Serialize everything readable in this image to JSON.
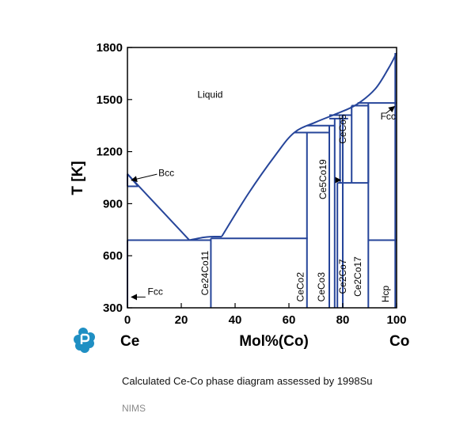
{
  "chart_data": {
    "type": "phase-diagram",
    "xlabel": "Mol%(Co)",
    "ylabel": "T [K]",
    "xlim": [
      0,
      100
    ],
    "ylim": [
      300,
      1800
    ],
    "xticks": [
      0,
      20,
      40,
      60,
      80,
      100
    ],
    "yticks": [
      300,
      600,
      900,
      1200,
      1500,
      1800
    ],
    "element_left": "Ce",
    "element_right": "Co",
    "colors": {
      "lines": "#26459a",
      "frame": "#000000",
      "logo": "#1f8fc3"
    },
    "curves": [
      {
        "name": "liquidus-ce-left",
        "points": [
          [
            0,
            1071
          ],
          [
            23,
            690
          ]
        ]
      },
      {
        "name": "liquidus-main",
        "points": [
          [
            35,
            710
          ],
          [
            45,
            960
          ],
          [
            55,
            1180
          ],
          [
            62,
            1310
          ],
          [
            70,
            1370
          ],
          [
            78,
            1420
          ],
          [
            85,
            1470
          ],
          [
            92,
            1560
          ],
          [
            97,
            1680
          ],
          [
            100,
            1768
          ]
        ]
      },
      {
        "name": "bcc-upper-boundary",
        "points": [
          [
            0,
            1071
          ],
          [
            4,
            1000
          ]
        ]
      },
      {
        "name": "bcc-left-boundary",
        "points": [
          [
            0,
            1000
          ],
          [
            0,
            1071
          ]
        ]
      },
      {
        "name": "bcc-ce-bottom",
        "points": [
          [
            0,
            1000
          ],
          [
            4,
            1000
          ]
        ]
      },
      {
        "name": "ce24co11-liquidus",
        "points": [
          [
            23,
            690
          ],
          [
            28,
            705
          ],
          [
            31,
            710
          ],
          [
            35,
            710
          ]
        ]
      },
      {
        "name": "eutectic-ce-ce24co11",
        "points": [
          [
            0,
            690
          ],
          [
            31,
            690
          ]
        ]
      },
      {
        "name": "peritectic-ce24co11",
        "points": [
          [
            31,
            700
          ],
          [
            67,
            700
          ]
        ]
      },
      {
        "name": "ce24co11-line",
        "points": [
          [
            31,
            300
          ],
          [
            31,
            700
          ]
        ]
      },
      {
        "name": "ceco2-line",
        "points": [
          [
            66.7,
            300
          ],
          [
            66.7,
            1310
          ]
        ]
      },
      {
        "name": "ceco2-top",
        "points": [
          [
            62,
            1310
          ],
          [
            75,
            1310
          ]
        ]
      },
      {
        "name": "ceco3-line",
        "points": [
          [
            75,
            300
          ],
          [
            75,
            1350
          ]
        ]
      },
      {
        "name": "ceco3-top",
        "points": [
          [
            66.7,
            1350
          ],
          [
            77,
            1350
          ]
        ]
      },
      {
        "name": "ce5co19-left",
        "points": [
          [
            77,
            300
          ],
          [
            77,
            1390
          ]
        ]
      },
      {
        "name": "ce5co19-right",
        "points": [
          [
            79,
            1020
          ],
          [
            79,
            1390
          ]
        ]
      },
      {
        "name": "ce5co19-top",
        "points": [
          [
            75,
            1390
          ],
          [
            82,
            1390
          ]
        ]
      },
      {
        "name": "ce2co7-line",
        "points": [
          [
            78,
            300
          ],
          [
            78,
            1020
          ]
        ]
      },
      {
        "name": "ce2co7-top",
        "points": [
          [
            78,
            1020
          ],
          [
            83.3,
            1020
          ]
        ]
      },
      {
        "name": "ce2co17-line",
        "points": [
          [
            80,
            300
          ],
          [
            80,
            1410
          ]
        ]
      },
      {
        "name": "ce2co17-top",
        "points": [
          [
            75,
            1410
          ],
          [
            83.3,
            1410
          ]
        ]
      },
      {
        "name": "ceco5-left",
        "points": [
          [
            83.3,
            1020
          ],
          [
            83.3,
            1465
          ]
        ]
      },
      {
        "name": "ceco5-top",
        "points": [
          [
            83.3,
            1465
          ],
          [
            89.5,
            1465
          ]
        ]
      },
      {
        "name": "ceco5-right",
        "points": [
          [
            89.5,
            1020
          ],
          [
            89.5,
            1465
          ]
        ]
      },
      {
        "name": "ceco5-bottom",
        "points": [
          [
            83.3,
            1020
          ],
          [
            89.5,
            1020
          ]
        ]
      },
      {
        "name": "ce2co17-right",
        "points": [
          [
            89.5,
            300
          ],
          [
            89.5,
            1480
          ]
        ]
      },
      {
        "name": "fcc-co-top",
        "points": [
          [
            85.5,
            1480
          ],
          [
            100,
            1480
          ]
        ]
      },
      {
        "name": "hcp-co-top",
        "points": [
          [
            89.5,
            690
          ],
          [
            100,
            690
          ]
        ]
      },
      {
        "name": "co-edge-line",
        "points": [
          [
            99.5,
            300
          ],
          [
            99.5,
            1768
          ]
        ]
      },
      {
        "name": "fcc-ce-line",
        "points": [
          [
            0,
            300
          ],
          [
            0,
            690
          ]
        ]
      }
    ],
    "labels": [
      {
        "text": "Liquid",
        "x": 26,
        "y": 1510,
        "rotate": false
      },
      {
        "text": "Bcc",
        "x": 11.5,
        "y": 1060,
        "rotate": false
      },
      {
        "text": "Fcc",
        "x": 7.5,
        "y": 375,
        "rotate": false
      },
      {
        "text": "Fcc",
        "x": 94,
        "y": 1385,
        "rotate": false
      },
      {
        "text": "Ce24Co11",
        "x": 30,
        "y": 500,
        "rotate": true
      },
      {
        "text": "CeCo2",
        "x": 65.5,
        "y": 420,
        "rotate": true
      },
      {
        "text": "CeCo3",
        "x": 73.3,
        "y": 420,
        "rotate": true
      },
      {
        "text": "Ce5Co19",
        "x": 73.8,
        "y": 1040,
        "rotate": true
      },
      {
        "text": "Ce2Co7",
        "x": 81.2,
        "y": 480,
        "rotate": true
      },
      {
        "text": "Ce2Co17",
        "x": 86.8,
        "y": 480,
        "rotate": true
      },
      {
        "text": "CeCo5",
        "x": 81.2,
        "y": 1330,
        "rotate": true
      },
      {
        "text": "Hcp",
        "x": 97,
        "y": 380,
        "rotate": true
      }
    ],
    "arrows": [
      {
        "from": [
          11,
          1070
        ],
        "to": [
          1.5,
          1035
        ]
      },
      {
        "from": [
          6.7,
          362
        ],
        "to": [
          1.5,
          362
        ]
      },
      {
        "from": [
          96,
          1420
        ],
        "to": [
          99.2,
          1460
        ]
      },
      {
        "from": [
          77.5,
          1036
        ],
        "to": [
          79.2,
          1036
        ]
      }
    ]
  },
  "caption": "Calculated Ce-Co phase diagram assessed by 1998Su",
  "source": "NIMS",
  "logo_icon": "nims-p-logo-icon"
}
